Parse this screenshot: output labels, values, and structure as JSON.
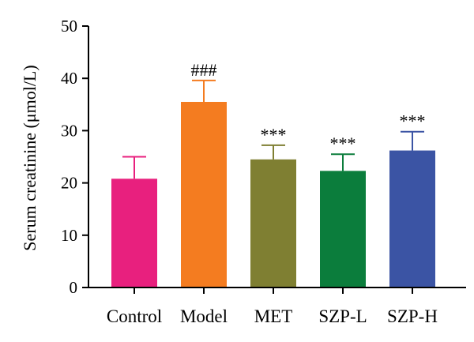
{
  "chart_data": {
    "type": "bar",
    "categories": [
      "Control",
      "Model",
      "MET",
      "SZP-L",
      "SZP-H"
    ],
    "values": [
      20.8,
      35.5,
      24.5,
      22.3,
      26.2
    ],
    "errors": [
      4.2,
      4.1,
      2.7,
      3.2,
      3.6
    ],
    "colors": [
      "#e8207e",
      "#f47c20",
      "#7f7f32",
      "#0b7d3c",
      "#3b54a4"
    ],
    "annotations": [
      "",
      "###",
      "***",
      "***",
      "***"
    ],
    "ylabel": "Serum creatinine (μmol/L)",
    "ylim": [
      0,
      50
    ],
    "yticks": [
      0,
      10,
      20,
      30,
      40,
      50
    ],
    "grid": false
  }
}
